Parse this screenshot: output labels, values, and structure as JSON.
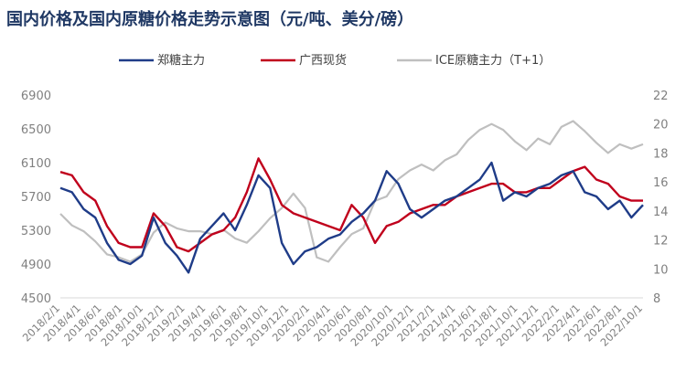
{
  "chart_data": {
    "type": "line",
    "title": "国内价格及国内原糖价格走势示意图（元/吨、美分/磅）",
    "xlabel": "",
    "ylabel_left": "",
    "ylabel_right": "",
    "x_ticks": [
      "2018/2/1",
      "2018/4/1",
      "2018/6/1",
      "2018/8/1",
      "2018/10/1",
      "2018/12/1",
      "2019/2/1",
      "2019/4/1",
      "2019/6/1",
      "2019/8/1",
      "2019/10/1",
      "2019/12/1",
      "2020/2/1",
      "2020/4/1",
      "2020/6/1",
      "2020/8/1",
      "2020/10/1",
      "2020/12/1",
      "2021/2/1",
      "2021/4/1",
      "2021/6/1",
      "2021/8/1",
      "2021/10/1",
      "2021/12/1",
      "2022/2/1",
      "2022/4/1",
      "2022/6/1",
      "2022/8/1",
      "2022/10/1"
    ],
    "left_axis": {
      "min": 4500,
      "max": 6900,
      "ticks": [
        4500,
        4900,
        5300,
        5700,
        6100,
        6500,
        6900
      ]
    },
    "right_axis": {
      "min": 8,
      "max": 22,
      "ticks": [
        8,
        10,
        12,
        14,
        16,
        18,
        20,
        22
      ]
    },
    "legend_position": "top",
    "grid": false,
    "series": [
      {
        "name": "郑糖主力",
        "axis": "left",
        "color": "#1f3c88",
        "values": [
          5800,
          5750,
          5550,
          5450,
          5150,
          4950,
          4900,
          5000,
          5450,
          5150,
          5000,
          4800,
          5200,
          5350,
          5500,
          5300,
          5600,
          5950,
          5800,
          5150,
          4900,
          5050,
          5100,
          5200,
          5250,
          5400,
          5500,
          5650,
          6000,
          5850,
          5550,
          5450,
          5550,
          5650,
          5700,
          5800,
          5900,
          6100,
          5650,
          5750,
          5700,
          5800,
          5850,
          5950,
          6000,
          5750,
          5700,
          5550,
          5650,
          5450,
          5600
        ]
      },
      {
        "name": "广西现货",
        "axis": "left",
        "color": "#c0001c",
        "values": [
          5990,
          5950,
          5750,
          5650,
          5350,
          5150,
          5100,
          5100,
          5500,
          5350,
          5100,
          5050,
          5150,
          5250,
          5300,
          5450,
          5750,
          6150,
          5900,
          5600,
          5500,
          5450,
          5400,
          5350,
          5300,
          5600,
          5450,
          5150,
          5350,
          5400,
          5500,
          5550,
          5600,
          5600,
          5700,
          5750,
          5800,
          5850,
          5850,
          5750,
          5750,
          5800,
          5800,
          5900,
          6000,
          6050,
          5900,
          5850,
          5700,
          5650,
          5650
        ]
      },
      {
        "name": "ICE原糖主力（T+1）",
        "axis": "right",
        "color": "#bfbfbf",
        "values": [
          13.8,
          13.0,
          12.6,
          11.9,
          11.0,
          10.8,
          10.5,
          11.0,
          12.5,
          13.2,
          12.8,
          12.6,
          12.6,
          12.4,
          12.7,
          12.1,
          11.8,
          12.6,
          13.5,
          14.2,
          15.2,
          14.2,
          10.8,
          10.5,
          11.5,
          12.4,
          12.8,
          14.7,
          15.0,
          16.2,
          16.8,
          17.2,
          16.8,
          17.5,
          17.9,
          18.9,
          19.6,
          20.0,
          19.6,
          18.8,
          18.2,
          19.0,
          18.6,
          19.8,
          20.2,
          19.5,
          18.7,
          18.0,
          18.6,
          18.3,
          18.6
        ]
      }
    ]
  }
}
